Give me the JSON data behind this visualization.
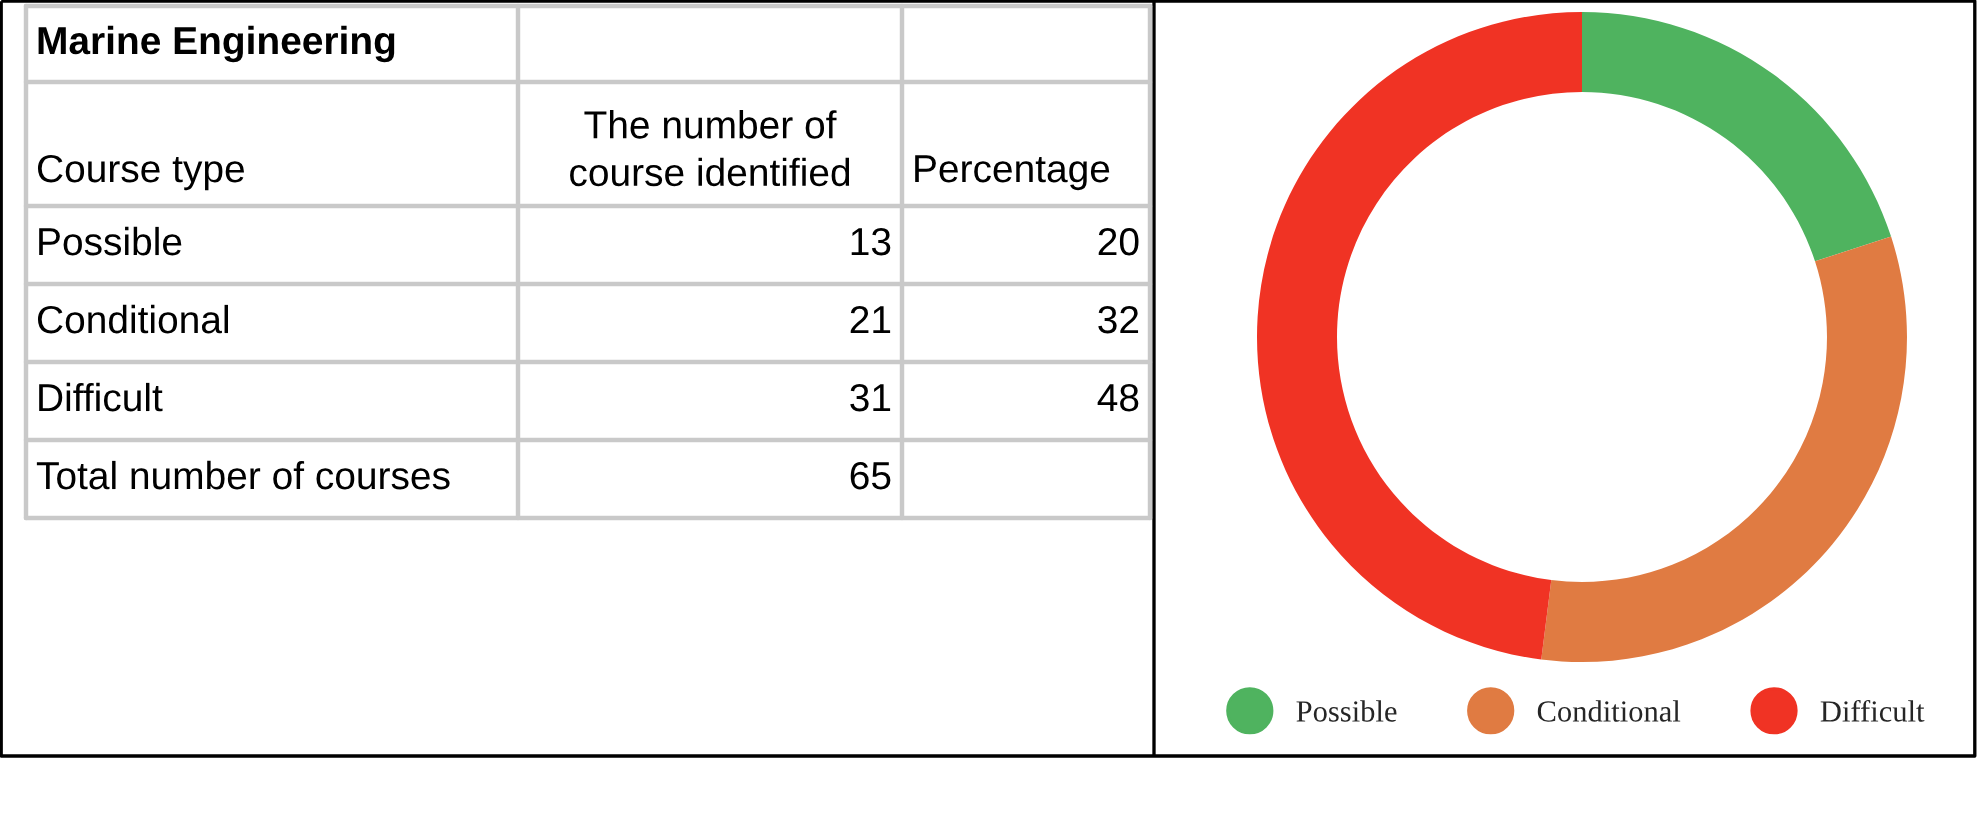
{
  "chart_data": {
    "type": "donut",
    "title": "Marine Engineering",
    "categories": [
      "Possible",
      "Conditional",
      "Difficult"
    ],
    "values": [
      20,
      32,
      48
    ],
    "colors": [
      "#4fb35f",
      "#e07b42",
      "#f03324"
    ],
    "legend": "bottom",
    "totals": [
      "65"
    ],
    "annotations": [
      "Course type",
      "The number of\ncourse identified",
      "Percentage",
      "13",
      "20",
      "21",
      "32",
      "31",
      "48",
      "Total number of courses"
    ]
  }
}
